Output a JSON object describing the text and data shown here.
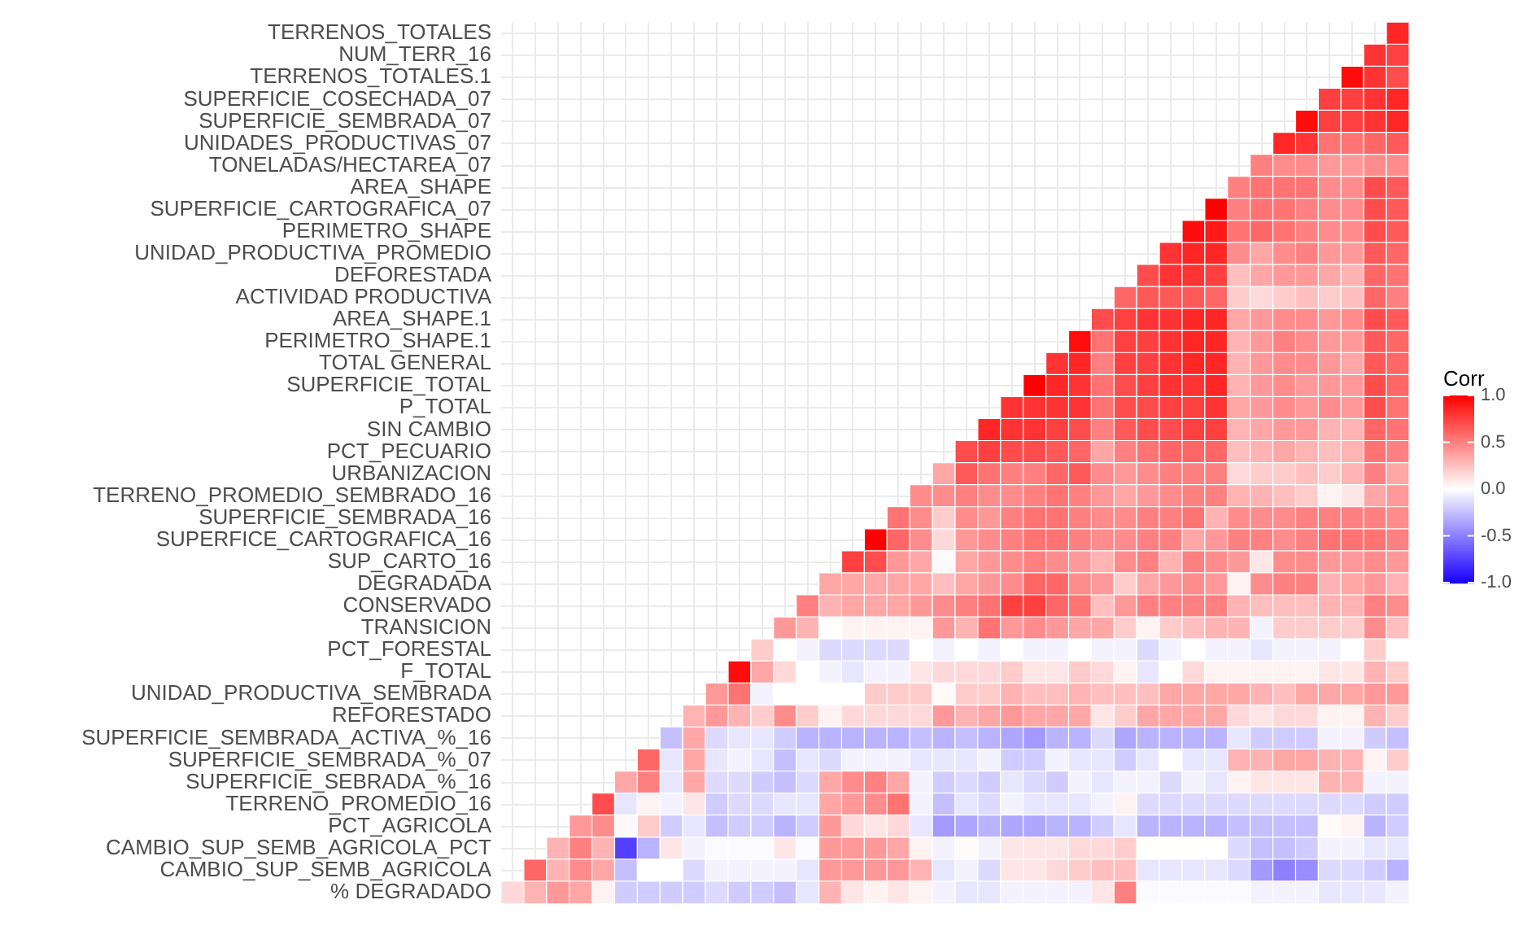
{
  "chart_data": {
    "type": "heatmap",
    "clabel": "Corr",
    "tick_labels": "y",
    "grid": true,
    "categories": [
      null,
      null,
      null,
      null,
      null,
      null,
      null,
      null,
      null,
      null,
      null,
      null,
      null,
      null,
      null,
      null,
      null,
      null,
      null,
      null,
      null,
      null,
      null,
      null,
      null,
      null,
      null,
      null,
      null,
      null,
      null,
      null,
      null,
      null,
      null,
      null,
      null,
      null,
      null,
      null
    ],
    "y_categories": [
      "TERRENOS_TOTALES",
      "NUM_TERR_16",
      "TERRENOS_TOTALES.1",
      "SUPERFICIE_COSECHADA_07",
      "SUPERFICIE_SEMBRADA_07",
      "UNIDADES_PRODUCTIVAS_07",
      "TONELADAS/HECTAREA_07",
      "AREA_SHAPE",
      "SUPERFICIE_CARTOGRAFICA_07",
      "PERIMETRO_SHAPE",
      "UNIDAD_PRODUCTIVA_PROMEDIO",
      "DEFORESTADA",
      "ACTIVIDAD PRODUCTIVA",
      "AREA_SHAPE.1",
      "PERIMETRO_SHAPE.1",
      "TOTAL GENERAL",
      "SUPERFICIE_TOTAL",
      "P_TOTAL",
      "SIN CAMBIO",
      "PCT_PECUARIO",
      "URBANIZACION",
      "TERRENO_PROMEDIO_SEMBRADO_16",
      "SUPERFICIE_SEMBRADA_16",
      "SUPERFICE_CARTOGRAFICA_16",
      "SUP_CARTO_16",
      "DEGRADADA",
      "CONSERVADO",
      "TRANSICION",
      "PCT_FORESTAL",
      "F_TOTAL",
      "UNIDAD_PRODUCTIVA_SEMBRADA",
      "REFORESTADO",
      "SUPERFICIE_SEMBRADA_ACTIVA_%_16",
      "SUPERFICIE_SEMBRADA_%_07",
      "SUPERFICIE_SEBRADA_%_16",
      "TERRENO_PROMEDIO_16",
      "PCT_AGRICOLA",
      "CAMBIO_SUP_SEMB_AGRICOLA_PCT",
      "CAMBIO_SUP_SEMB_AGRICOLA",
      "% DEGRADADO"
    ],
    "clim": [
      -1,
      1
    ],
    "cticks": [
      {
        "value": 1,
        "label": "1.0"
      },
      {
        "value": 0.5,
        "label": "0.5"
      },
      {
        "value": 0,
        "label": "0.0"
      },
      {
        "value": -0.5,
        "label": "-0.5"
      },
      {
        "value": -1,
        "label": "-1.0"
      }
    ],
    "cells": [
      [
        null,
        null,
        null,
        null,
        null,
        null,
        null,
        null,
        null,
        null,
        null,
        null,
        null,
        null,
        null,
        null,
        null,
        null,
        null,
        null,
        null,
        null,
        null,
        null,
        null,
        null,
        null,
        null,
        null,
        null,
        null,
        null,
        null,
        null,
        null,
        null,
        null,
        null,
        null,
        0.85
      ],
      [
        null,
        null,
        null,
        null,
        null,
        null,
        null,
        null,
        null,
        null,
        null,
        null,
        null,
        null,
        null,
        null,
        null,
        null,
        null,
        null,
        null,
        null,
        null,
        null,
        null,
        null,
        null,
        null,
        null,
        null,
        null,
        null,
        null,
        null,
        null,
        null,
        null,
        null,
        0.8,
        0.75
      ],
      [
        null,
        null,
        null,
        null,
        null,
        null,
        null,
        null,
        null,
        null,
        null,
        null,
        null,
        null,
        null,
        null,
        null,
        null,
        null,
        null,
        null,
        null,
        null,
        null,
        null,
        null,
        null,
        null,
        null,
        null,
        null,
        null,
        null,
        null,
        null,
        null,
        null,
        0.95,
        0.8,
        0.7
      ],
      [
        null,
        null,
        null,
        null,
        null,
        null,
        null,
        null,
        null,
        null,
        null,
        null,
        null,
        null,
        null,
        null,
        null,
        null,
        null,
        null,
        null,
        null,
        null,
        null,
        null,
        null,
        null,
        null,
        null,
        null,
        null,
        null,
        null,
        null,
        null,
        null,
        0.75,
        0.75,
        0.8,
        0.85
      ],
      [
        null,
        null,
        null,
        null,
        null,
        null,
        null,
        null,
        null,
        null,
        null,
        null,
        null,
        null,
        null,
        null,
        null,
        null,
        null,
        null,
        null,
        null,
        null,
        null,
        null,
        null,
        null,
        null,
        null,
        null,
        null,
        null,
        null,
        null,
        null,
        0.95,
        0.75,
        0.75,
        0.8,
        0.85
      ],
      [
        null,
        null,
        null,
        null,
        null,
        null,
        null,
        null,
        null,
        null,
        null,
        null,
        null,
        null,
        null,
        null,
        null,
        null,
        null,
        null,
        null,
        null,
        null,
        null,
        null,
        null,
        null,
        null,
        null,
        null,
        null,
        null,
        null,
        null,
        0.85,
        0.8,
        0.55,
        0.55,
        0.6,
        0.65
      ],
      [
        null,
        null,
        null,
        null,
        null,
        null,
        null,
        null,
        null,
        null,
        null,
        null,
        null,
        null,
        null,
        null,
        null,
        null,
        null,
        null,
        null,
        null,
        null,
        null,
        null,
        null,
        null,
        null,
        null,
        null,
        null,
        null,
        null,
        0.5,
        0.45,
        0.45,
        0.4,
        0.4,
        0.45,
        0.45
      ],
      [
        null,
        null,
        null,
        null,
        null,
        null,
        null,
        null,
        null,
        null,
        null,
        null,
        null,
        null,
        null,
        null,
        null,
        null,
        null,
        null,
        null,
        null,
        null,
        null,
        null,
        null,
        null,
        null,
        null,
        null,
        null,
        null,
        0.5,
        0.55,
        0.55,
        0.55,
        0.45,
        0.45,
        0.7,
        0.65
      ],
      [
        null,
        null,
        null,
        null,
        null,
        null,
        null,
        null,
        null,
        null,
        null,
        null,
        null,
        null,
        null,
        null,
        null,
        null,
        null,
        null,
        null,
        null,
        null,
        null,
        null,
        null,
        null,
        null,
        null,
        null,
        null,
        1.0,
        0.5,
        0.55,
        0.55,
        0.5,
        0.45,
        0.45,
        0.7,
        0.65
      ],
      [
        null,
        null,
        null,
        null,
        null,
        null,
        null,
        null,
        null,
        null,
        null,
        null,
        null,
        null,
        null,
        null,
        null,
        null,
        null,
        null,
        null,
        null,
        null,
        null,
        null,
        null,
        null,
        null,
        null,
        null,
        0.95,
        0.9,
        0.55,
        0.6,
        0.55,
        0.5,
        0.45,
        0.45,
        0.7,
        0.65
      ],
      [
        null,
        null,
        null,
        null,
        null,
        null,
        null,
        null,
        null,
        null,
        null,
        null,
        null,
        null,
        null,
        null,
        null,
        null,
        null,
        null,
        null,
        null,
        null,
        null,
        null,
        null,
        null,
        null,
        null,
        0.8,
        0.85,
        0.85,
        0.45,
        0.35,
        0.45,
        0.5,
        0.4,
        0.4,
        0.65,
        0.6
      ],
      [
        null,
        null,
        null,
        null,
        null,
        null,
        null,
        null,
        null,
        null,
        null,
        null,
        null,
        null,
        null,
        null,
        null,
        null,
        null,
        null,
        null,
        null,
        null,
        null,
        null,
        null,
        null,
        null,
        0.7,
        0.8,
        0.8,
        0.75,
        0.25,
        0.35,
        0.4,
        0.4,
        0.35,
        0.3,
        0.6,
        0.55
      ],
      [
        null,
        null,
        null,
        null,
        null,
        null,
        null,
        null,
        null,
        null,
        null,
        null,
        null,
        null,
        null,
        null,
        null,
        null,
        null,
        null,
        null,
        null,
        null,
        null,
        null,
        null,
        null,
        0.6,
        0.65,
        0.65,
        0.65,
        0.6,
        0.2,
        0.15,
        0.2,
        0.25,
        0.2,
        0.25,
        0.6,
        0.5
      ],
      [
        null,
        null,
        null,
        null,
        null,
        null,
        null,
        null,
        null,
        null,
        null,
        null,
        null,
        null,
        null,
        null,
        null,
        null,
        null,
        null,
        null,
        null,
        null,
        null,
        null,
        null,
        0.7,
        0.75,
        0.8,
        0.8,
        0.85,
        0.85,
        0.35,
        0.4,
        0.45,
        0.45,
        0.4,
        0.45,
        0.7,
        0.65
      ],
      [
        null,
        null,
        null,
        null,
        null,
        null,
        null,
        null,
        null,
        null,
        null,
        null,
        null,
        null,
        null,
        null,
        null,
        null,
        null,
        null,
        null,
        null,
        null,
        null,
        null,
        0.95,
        0.55,
        0.75,
        0.75,
        0.8,
        0.85,
        0.85,
        0.3,
        0.4,
        0.5,
        0.45,
        0.4,
        0.4,
        0.65,
        0.6
      ],
      [
        null,
        null,
        null,
        null,
        null,
        null,
        null,
        null,
        null,
        null,
        null,
        null,
        null,
        null,
        null,
        null,
        null,
        null,
        null,
        null,
        null,
        null,
        null,
        null,
        0.8,
        0.85,
        0.5,
        0.75,
        0.75,
        0.8,
        0.85,
        0.85,
        0.3,
        0.4,
        0.45,
        0.45,
        0.4,
        0.35,
        0.65,
        0.6
      ],
      [
        null,
        null,
        null,
        null,
        null,
        null,
        null,
        null,
        null,
        null,
        null,
        null,
        null,
        null,
        null,
        null,
        null,
        null,
        null,
        null,
        null,
        null,
        null,
        1.0,
        0.85,
        0.8,
        0.55,
        0.7,
        0.75,
        0.8,
        0.8,
        0.85,
        0.3,
        0.4,
        0.45,
        0.4,
        0.4,
        0.4,
        0.7,
        0.6
      ],
      [
        null,
        null,
        null,
        null,
        null,
        null,
        null,
        null,
        null,
        null,
        null,
        null,
        null,
        null,
        null,
        null,
        null,
        null,
        null,
        null,
        null,
        null,
        0.8,
        0.8,
        0.8,
        0.8,
        0.55,
        0.7,
        0.7,
        0.75,
        0.75,
        0.8,
        0.35,
        0.4,
        0.45,
        0.4,
        0.45,
        0.4,
        0.7,
        0.55
      ],
      [
        null,
        null,
        null,
        null,
        null,
        null,
        null,
        null,
        null,
        null,
        null,
        null,
        null,
        null,
        null,
        null,
        null,
        null,
        null,
        null,
        null,
        0.85,
        0.8,
        0.8,
        0.75,
        0.7,
        0.5,
        0.65,
        0.7,
        0.7,
        0.75,
        0.75,
        0.3,
        0.35,
        0.4,
        0.4,
        0.3,
        0.3,
        0.6,
        0.55
      ],
      [
        null,
        null,
        null,
        null,
        null,
        null,
        null,
        null,
        null,
        null,
        null,
        null,
        null,
        null,
        null,
        null,
        null,
        null,
        null,
        null,
        0.7,
        0.75,
        0.7,
        0.7,
        0.65,
        0.6,
        0.35,
        0.5,
        0.55,
        0.6,
        0.6,
        0.6,
        0.25,
        0.3,
        0.35,
        0.3,
        0.25,
        0.3,
        0.55,
        0.5
      ],
      [
        null,
        null,
        null,
        null,
        null,
        null,
        null,
        null,
        null,
        null,
        null,
        null,
        null,
        null,
        null,
        null,
        null,
        null,
        null,
        0.35,
        0.65,
        0.55,
        0.5,
        0.5,
        0.6,
        0.65,
        0.45,
        0.4,
        0.45,
        0.5,
        0.5,
        0.5,
        0.15,
        0.2,
        0.2,
        0.25,
        0.2,
        0.3,
        0.5,
        0.35
      ],
      [
        null,
        null,
        null,
        null,
        null,
        null,
        null,
        null,
        null,
        null,
        null,
        null,
        null,
        null,
        null,
        null,
        null,
        null,
        0.45,
        0.45,
        0.5,
        0.45,
        0.45,
        0.5,
        0.55,
        0.5,
        0.4,
        0.35,
        0.4,
        0.45,
        0.5,
        0.5,
        0.3,
        0.3,
        0.25,
        0.2,
        0.05,
        0.1,
        0.35,
        0.4
      ],
      [
        null,
        null,
        null,
        null,
        null,
        null,
        null,
        null,
        null,
        null,
        null,
        null,
        null,
        null,
        null,
        null,
        null,
        0.55,
        0.45,
        0.2,
        0.45,
        0.4,
        0.5,
        0.55,
        0.55,
        0.5,
        0.45,
        0.45,
        0.5,
        0.5,
        0.55,
        0.3,
        0.45,
        0.45,
        0.45,
        0.5,
        0.5,
        0.5,
        0.5,
        0.45
      ],
      [
        null,
        null,
        null,
        null,
        null,
        null,
        null,
        null,
        null,
        null,
        null,
        null,
        null,
        null,
        null,
        null,
        1.0,
        0.6,
        0.45,
        0.15,
        0.4,
        0.45,
        0.5,
        0.55,
        0.55,
        0.5,
        0.45,
        0.45,
        0.5,
        0.5,
        0.35,
        0.4,
        0.5,
        0.5,
        0.45,
        0.5,
        0.55,
        0.55,
        0.55,
        0.5
      ],
      [
        null,
        null,
        null,
        null,
        null,
        null,
        null,
        null,
        null,
        null,
        null,
        null,
        null,
        null,
        null,
        0.75,
        0.7,
        0.4,
        0.35,
        0.02,
        0.35,
        0.4,
        0.45,
        0.5,
        0.45,
        0.4,
        0.3,
        0.45,
        0.5,
        0.3,
        0.5,
        0.45,
        0.4,
        0.1,
        0.45,
        0.45,
        0.4,
        0.4,
        0.45,
        0.4
      ],
      [
        null,
        null,
        null,
        null,
        null,
        null,
        null,
        null,
        null,
        null,
        null,
        null,
        null,
        null,
        0.35,
        0.35,
        0.35,
        0.35,
        0.35,
        0.25,
        0.35,
        0.4,
        0.45,
        0.6,
        0.6,
        0.45,
        0.4,
        0.2,
        0.35,
        0.4,
        0.45,
        0.4,
        0.05,
        0.45,
        0.5,
        0.5,
        0.3,
        0.35,
        0.4,
        0.3
      ],
      [
        null,
        null,
        null,
        null,
        null,
        null,
        null,
        null,
        null,
        null,
        null,
        null,
        null,
        0.5,
        0.3,
        0.35,
        0.35,
        0.35,
        0.4,
        0.45,
        0.5,
        0.55,
        0.75,
        0.75,
        0.6,
        0.55,
        0.25,
        0.4,
        0.5,
        0.5,
        0.5,
        0.5,
        0.3,
        0.25,
        0.25,
        0.25,
        0.3,
        0.3,
        0.5,
        0.45
      ],
      [
        null,
        null,
        null,
        null,
        null,
        null,
        null,
        null,
        null,
        null,
        null,
        null,
        0.4,
        0.3,
        0.0,
        0.05,
        0.05,
        0.05,
        0.05,
        0.4,
        0.3,
        0.55,
        0.4,
        0.45,
        0.4,
        0.35,
        0.35,
        0.2,
        0.05,
        0.2,
        0.25,
        0.3,
        0.3,
        -0.05,
        0.2,
        0.2,
        0.2,
        0.2,
        0.45,
        0.25
      ],
      [
        null,
        null,
        null,
        null,
        null,
        null,
        null,
        null,
        null,
        null,
        null,
        0.2,
        0.0,
        -0.05,
        -0.15,
        -0.15,
        -0.15,
        -0.15,
        0.0,
        -0.05,
        0.0,
        -0.05,
        0.0,
        -0.05,
        -0.05,
        0.0,
        -0.05,
        -0.05,
        -0.15,
        -0.05,
        0.0,
        -0.05,
        -0.05,
        -0.1,
        -0.05,
        -0.05,
        -0.05,
        0.0,
        0.2,
        0.0
      ],
      [
        null,
        null,
        null,
        null,
        null,
        null,
        null,
        null,
        null,
        null,
        0.95,
        0.35,
        0.15,
        0.0,
        -0.05,
        -0.1,
        -0.05,
        -0.05,
        0.1,
        0.15,
        0.15,
        0.15,
        0.2,
        0.1,
        0.1,
        0.2,
        0.15,
        0.05,
        -0.1,
        0.0,
        0.15,
        0.05,
        0.05,
        0.05,
        0.05,
        0.05,
        0.1,
        0.1,
        0.3,
        0.2
      ],
      [
        null,
        null,
        null,
        null,
        null,
        null,
        null,
        null,
        null,
        0.4,
        0.55,
        -0.05,
        0.0,
        0.0,
        0.0,
        0.0,
        0.2,
        0.2,
        0.2,
        0.02,
        0.2,
        0.2,
        0.3,
        0.25,
        0.25,
        0.3,
        0.25,
        0.25,
        0.25,
        0.35,
        0.35,
        0.35,
        0.35,
        0.3,
        0.25,
        0.35,
        0.35,
        0.35,
        0.4,
        0.4
      ],
      [
        null,
        null,
        null,
        null,
        null,
        null,
        null,
        null,
        0.3,
        0.4,
        0.3,
        0.2,
        0.45,
        0.2,
        0.05,
        0.15,
        0.15,
        0.15,
        0.15,
        0.4,
        0.3,
        0.35,
        0.4,
        0.35,
        0.35,
        0.35,
        0.1,
        0.2,
        0.35,
        0.35,
        0.35,
        0.35,
        0.15,
        0.1,
        0.15,
        0.15,
        0.05,
        0.05,
        0.3,
        0.2
      ],
      [
        null,
        null,
        null,
        null,
        null,
        null,
        null,
        -0.25,
        0.35,
        -0.15,
        -0.1,
        -0.1,
        -0.2,
        -0.3,
        -0.3,
        -0.3,
        -0.3,
        -0.3,
        -0.25,
        -0.3,
        -0.25,
        -0.3,
        -0.35,
        -0.4,
        -0.3,
        -0.3,
        -0.15,
        -0.35,
        -0.3,
        -0.3,
        -0.3,
        -0.3,
        -0.1,
        -0.2,
        -0.2,
        -0.2,
        -0.05,
        -0.05,
        -0.2,
        -0.25
      ],
      [
        null,
        null,
        null,
        null,
        null,
        null,
        0.6,
        -0.1,
        0.35,
        -0.1,
        -0.05,
        -0.1,
        -0.25,
        -0.1,
        -0.15,
        -0.05,
        -0.05,
        -0.05,
        -0.1,
        -0.1,
        -0.1,
        -0.05,
        -0.2,
        -0.2,
        -0.05,
        -0.1,
        -0.1,
        -0.2,
        -0.1,
        0.0,
        -0.1,
        -0.1,
        0.3,
        0.3,
        0.35,
        0.35,
        0.3,
        0.3,
        0.05,
        0.2
      ],
      [
        null,
        null,
        null,
        null,
        null,
        0.35,
        0.5,
        -0.1,
        0.35,
        -0.15,
        -0.15,
        -0.2,
        -0.25,
        -0.15,
        0.35,
        0.45,
        0.5,
        0.35,
        -0.05,
        -0.2,
        -0.15,
        -0.2,
        -0.1,
        -0.15,
        -0.2,
        -0.05,
        -0.1,
        -0.05,
        -0.05,
        -0.15,
        -0.05,
        -0.1,
        0.05,
        0.1,
        0.1,
        0.1,
        0.3,
        0.3,
        -0.05,
        -0.05
      ],
      [
        null,
        null,
        null,
        null,
        0.7,
        -0.1,
        0.05,
        -0.05,
        0.1,
        -0.2,
        -0.15,
        -0.15,
        -0.1,
        -0.1,
        0.35,
        0.4,
        0.45,
        0.55,
        -0.05,
        -0.25,
        -0.1,
        -0.15,
        -0.05,
        -0.1,
        -0.1,
        -0.1,
        -0.05,
        0.05,
        -0.15,
        -0.15,
        -0.15,
        -0.15,
        -0.15,
        -0.15,
        -0.15,
        -0.15,
        -0.15,
        -0.15,
        -0.2,
        -0.2
      ],
      [
        null,
        null,
        null,
        0.4,
        0.45,
        0.02,
        0.2,
        -0.2,
        -0.1,
        -0.25,
        -0.2,
        -0.2,
        -0.3,
        -0.2,
        0.4,
        0.15,
        0.1,
        0.15,
        -0.1,
        -0.4,
        -0.35,
        -0.3,
        -0.35,
        -0.35,
        -0.3,
        -0.3,
        -0.2,
        -0.1,
        -0.3,
        -0.3,
        -0.3,
        -0.3,
        -0.25,
        -0.25,
        -0.25,
        -0.25,
        0.02,
        0.05,
        -0.3,
        -0.2
      ],
      [
        null,
        null,
        0.3,
        0.5,
        0.3,
        -0.75,
        -0.3,
        0.1,
        -0.05,
        -0.02,
        -0.02,
        -0.02,
        0.1,
        -0.02,
        0.4,
        0.4,
        0.4,
        0.35,
        0.05,
        -0.05,
        0.02,
        -0.05,
        0.1,
        0.1,
        0.1,
        0.15,
        0.15,
        0.2,
        0.0,
        0.0,
        0.0,
        0.0,
        -0.15,
        -0.25,
        -0.25,
        -0.2,
        -0.05,
        -0.05,
        -0.1,
        -0.1
      ],
      [
        null,
        0.6,
        0.3,
        0.45,
        0.35,
        -0.25,
        0.0,
        0.0,
        -0.15,
        -0.05,
        -0.05,
        -0.05,
        -0.05,
        -0.1,
        0.4,
        0.4,
        0.4,
        0.4,
        0.3,
        -0.1,
        -0.05,
        -0.15,
        0.1,
        0.1,
        0.15,
        0.2,
        0.25,
        0.25,
        -0.1,
        -0.1,
        -0.1,
        -0.1,
        -0.15,
        -0.4,
        -0.5,
        -0.45,
        -0.15,
        -0.15,
        -0.2,
        -0.3
      ],
      [
        0.15,
        0.3,
        0.4,
        0.35,
        0.05,
        -0.2,
        -0.2,
        -0.2,
        -0.2,
        -0.15,
        -0.2,
        -0.2,
        -0.25,
        -0.1,
        0.3,
        0.1,
        0.05,
        0.1,
        0.05,
        -0.05,
        -0.1,
        -0.1,
        -0.05,
        -0.05,
        -0.05,
        -0.05,
        0.1,
        0.5,
        -0.02,
        -0.02,
        -0.02,
        -0.02,
        -0.02,
        -0.05,
        -0.05,
        -0.05,
        -0.1,
        -0.1,
        -0.1,
        -0.05
      ]
    ]
  }
}
